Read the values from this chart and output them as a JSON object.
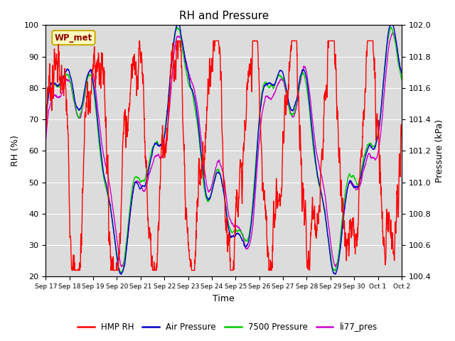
{
  "title": "RH and Pressure",
  "xlabel": "Time",
  "ylabel_left": "RH (%)",
  "ylabel_right": "Pressure (kPa)",
  "ylim_left": [
    20,
    100
  ],
  "ylim_right": [
    100.4,
    102.0
  ],
  "annotation": "WP_met",
  "bg_color": "#dcdcdc",
  "x_tick_labels": [
    "Sep 17",
    "Sep 18",
    "Sep 19",
    "Sep 20",
    "Sep 21",
    "Sep 22",
    "Sep 23",
    "Sep 24",
    "Sep 25",
    "Sep 26",
    "Sep 27",
    "Sep 28",
    "Sep 29",
    "Sep 30",
    "Oct 1",
    "Oct 2"
  ],
  "legend_labels": [
    "HMP RH",
    "Air Pressure",
    "7500 Pressure",
    "li77_pres"
  ],
  "line_colors": [
    "#ff0000",
    "#0000cc",
    "#00cc00",
    "#cc00cc"
  ],
  "linewidth": 1.0,
  "n_points": 2000
}
